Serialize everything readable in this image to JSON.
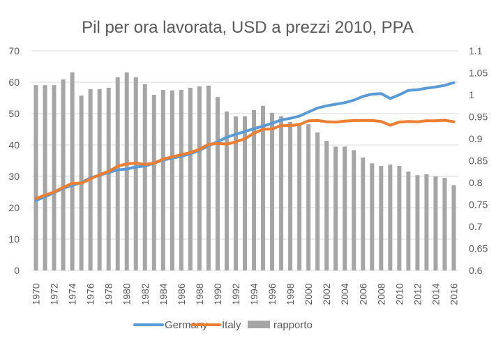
{
  "chart_data": {
    "type": "bar+line",
    "title": "Pil per ora lavorata, USD a prezzi 2010, PPA",
    "xlabel": "",
    "ylabel": "",
    "y2label": "",
    "categories": [
      "1970",
      "1971",
      "1972",
      "1973",
      "1974",
      "1975",
      "1976",
      "1977",
      "1978",
      "1979",
      "1980",
      "1981",
      "1982",
      "1983",
      "1984",
      "1985",
      "1986",
      "1987",
      "1988",
      "1989",
      "1990",
      "1991",
      "1992",
      "1993",
      "1994",
      "1995",
      "1996",
      "1997",
      "1998",
      "1999",
      "2000",
      "2001",
      "2002",
      "2003",
      "2004",
      "2005",
      "2006",
      "2007",
      "2008",
      "2009",
      "2010",
      "2011",
      "2012",
      "2013",
      "2014",
      "2015",
      "2016"
    ],
    "x_tick_labels": [
      "1970",
      "1972",
      "1974",
      "1976",
      "1978",
      "1980",
      "1982",
      "1984",
      "1986",
      "1988",
      "1990",
      "1992",
      "1994",
      "1996",
      "1998",
      "2000",
      "2002",
      "2004",
      "2006",
      "2008",
      "2010",
      "2012",
      "2014",
      "2016"
    ],
    "ylim": [
      0,
      70
    ],
    "y_ticks": [
      "0",
      "10",
      "20",
      "30",
      "40",
      "50",
      "60",
      "70"
    ],
    "y2lim": [
      0.6,
      1.1
    ],
    "y2_ticks": [
      "0.6",
      "0.65",
      "0.7",
      "0.75",
      "0.8",
      "0.85",
      "0.9",
      "0.95",
      "1",
      "1.05",
      "1.1"
    ],
    "grid": true,
    "legend_position": "bottom",
    "series": [
      {
        "name": "Germany",
        "type": "line",
        "axis": "left",
        "color": "#5b9bd5",
        "values": [
          22.3,
          23.5,
          24.8,
          26.2,
          27.1,
          28.0,
          29.5,
          30.4,
          31.2,
          32.1,
          32.3,
          33.0,
          33.3,
          34.2,
          35.2,
          35.8,
          36.4,
          37.2,
          38.3,
          39.8,
          41.0,
          42.5,
          43.4,
          44.3,
          45.2,
          46.0,
          46.9,
          48.0,
          48.5,
          49.2,
          50.5,
          51.8,
          52.5,
          53.0,
          53.5,
          54.3,
          55.5,
          56.2,
          56.4,
          54.8,
          56.0,
          57.4,
          57.6,
          58.1,
          58.5,
          59.0,
          59.9
        ]
      },
      {
        "name": "Italy",
        "type": "line",
        "axis": "left",
        "color": "#ed7d31",
        "values": [
          22.9,
          24.0,
          25.0,
          26.5,
          27.8,
          27.8,
          29.2,
          30.5,
          31.6,
          33.2,
          34.0,
          34.2,
          33.8,
          34.2,
          35.5,
          36.2,
          36.9,
          37.6,
          38.6,
          40.2,
          40.5,
          40.3,
          41.0,
          42.0,
          43.8,
          45.0,
          45.1,
          46.2,
          46.2,
          46.5,
          47.7,
          47.8,
          47.4,
          47.3,
          47.6,
          47.8,
          47.8,
          47.8,
          47.5,
          46.3,
          47.3,
          47.5,
          47.4,
          47.7,
          47.7,
          47.9,
          47.4
        ]
      },
      {
        "name": "rapporto",
        "type": "bar",
        "axis": "right",
        "color": "#a5a5a5",
        "values": [
          1.022,
          1.022,
          1.022,
          1.035,
          1.051,
          0.998,
          1.013,
          1.013,
          1.016,
          1.04,
          1.051,
          1.04,
          1.024,
          1.0,
          1.011,
          1.01,
          1.011,
          1.016,
          1.019,
          1.021,
          0.995,
          0.962,
          0.951,
          0.951,
          0.965,
          0.975,
          0.959,
          0.951,
          0.938,
          0.93,
          0.933,
          0.914,
          0.895,
          0.882,
          0.882,
          0.874,
          0.857,
          0.844,
          0.838,
          0.841,
          0.838,
          0.825,
          0.817,
          0.819,
          0.814,
          0.811,
          0.794
        ]
      }
    ]
  }
}
